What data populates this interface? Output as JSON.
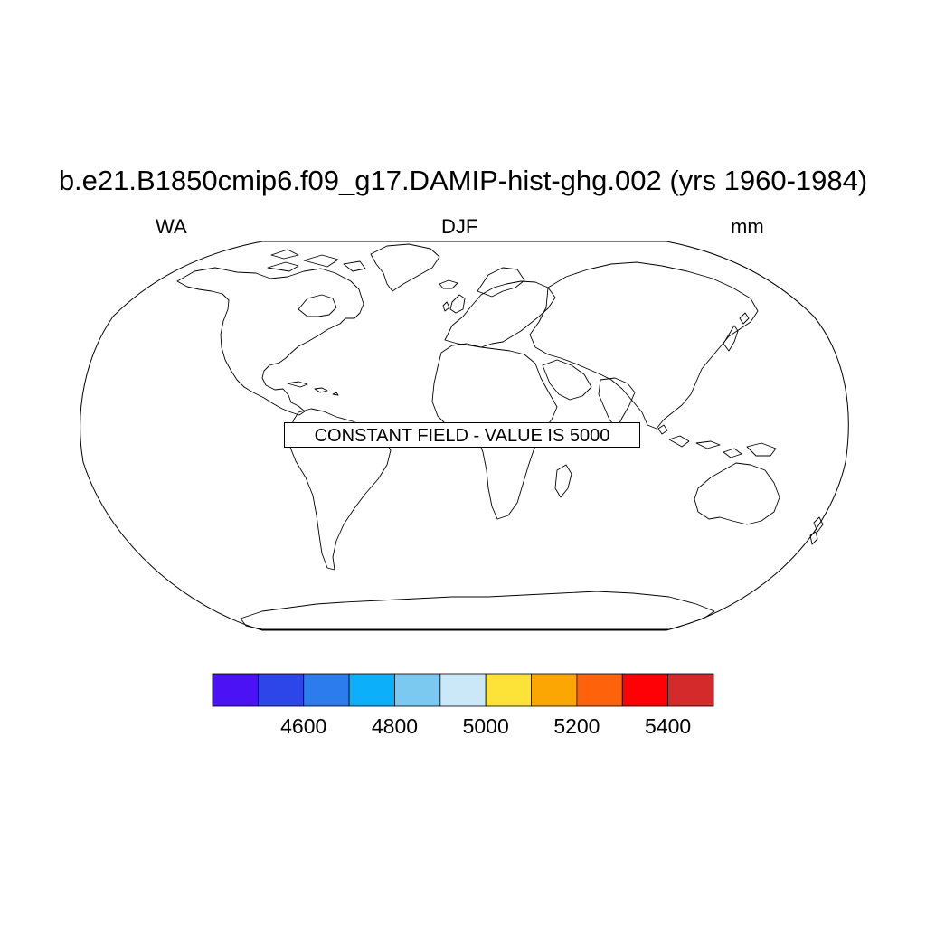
{
  "figure": {
    "title": "b.e21.B1850cmip6.f09_g17.DAMIP-hist-ghg.002 (yrs 1960-1984)",
    "left_label": "WA",
    "center_label": "DJF",
    "right_label": "mm"
  },
  "map": {
    "projection": "robinson",
    "constant_field_message": "CONSTANT FIELD - VALUE IS 5000"
  },
  "colorbar": {
    "colors": [
      "#4a12f5",
      "#2c46e9",
      "#2d7ced",
      "#0cb0fa",
      "#7bc9f0",
      "#cbe8f8",
      "#fde338",
      "#fba602",
      "#fe620b",
      "#fe0106",
      "#d52a2b"
    ],
    "tick_values": [
      "4600",
      "4800",
      "5000",
      "5200",
      "5400"
    ]
  }
}
